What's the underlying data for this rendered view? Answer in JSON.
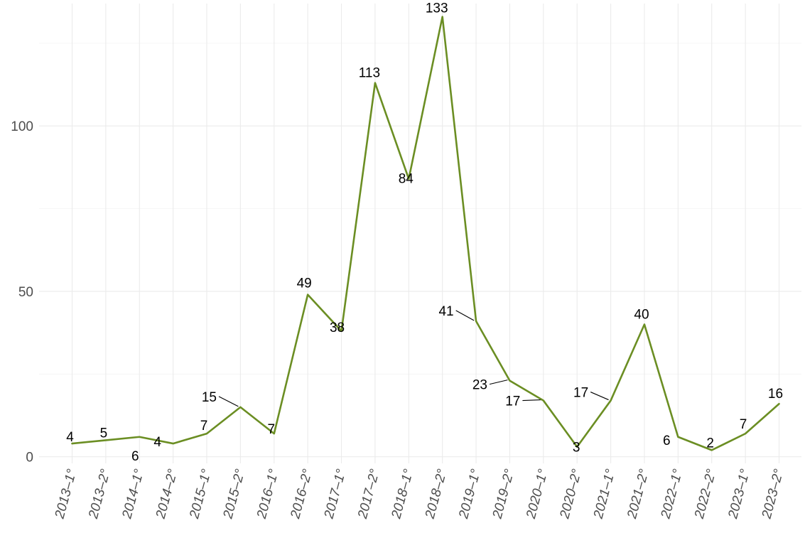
{
  "chart_data": {
    "type": "line",
    "title": "",
    "xlabel": "",
    "ylabel": "",
    "categories": [
      "2013–1°",
      "2013–2°",
      "2014–1°",
      "2014–2°",
      "2015–1°",
      "2015–2°",
      "2016–1°",
      "2016–2°",
      "2017–1°",
      "2017–2°",
      "2018–1°",
      "2018–2°",
      "2019–1°",
      "2019–2°",
      "2020–1°",
      "2020–2°",
      "2021–1°",
      "2021–2°",
      "2022–1°",
      "2022–2°",
      "2023–1°",
      "2023–2°"
    ],
    "series": [
      {
        "values": [
          4,
          5,
          6,
          4,
          7,
          15,
          7,
          49,
          38,
          113,
          84,
          133,
          41,
          23,
          17,
          3,
          17,
          40,
          6,
          2,
          7,
          16
        ]
      }
    ],
    "data_labels": [
      "4",
      "5",
      "6",
      "4",
      "7",
      "15",
      "7",
      "49",
      "38",
      "113",
      "84",
      "133",
      "41",
      "23",
      "17",
      "3",
      "17",
      "40",
      "6",
      "2",
      "7",
      "16"
    ],
    "yticks": [
      0,
      50,
      100
    ],
    "ytick_labels": [
      "0",
      "50",
      "100"
    ],
    "ylim": [
      -2,
      137
    ],
    "grid": true,
    "legend": "none",
    "line_color": "#6b8e23"
  }
}
